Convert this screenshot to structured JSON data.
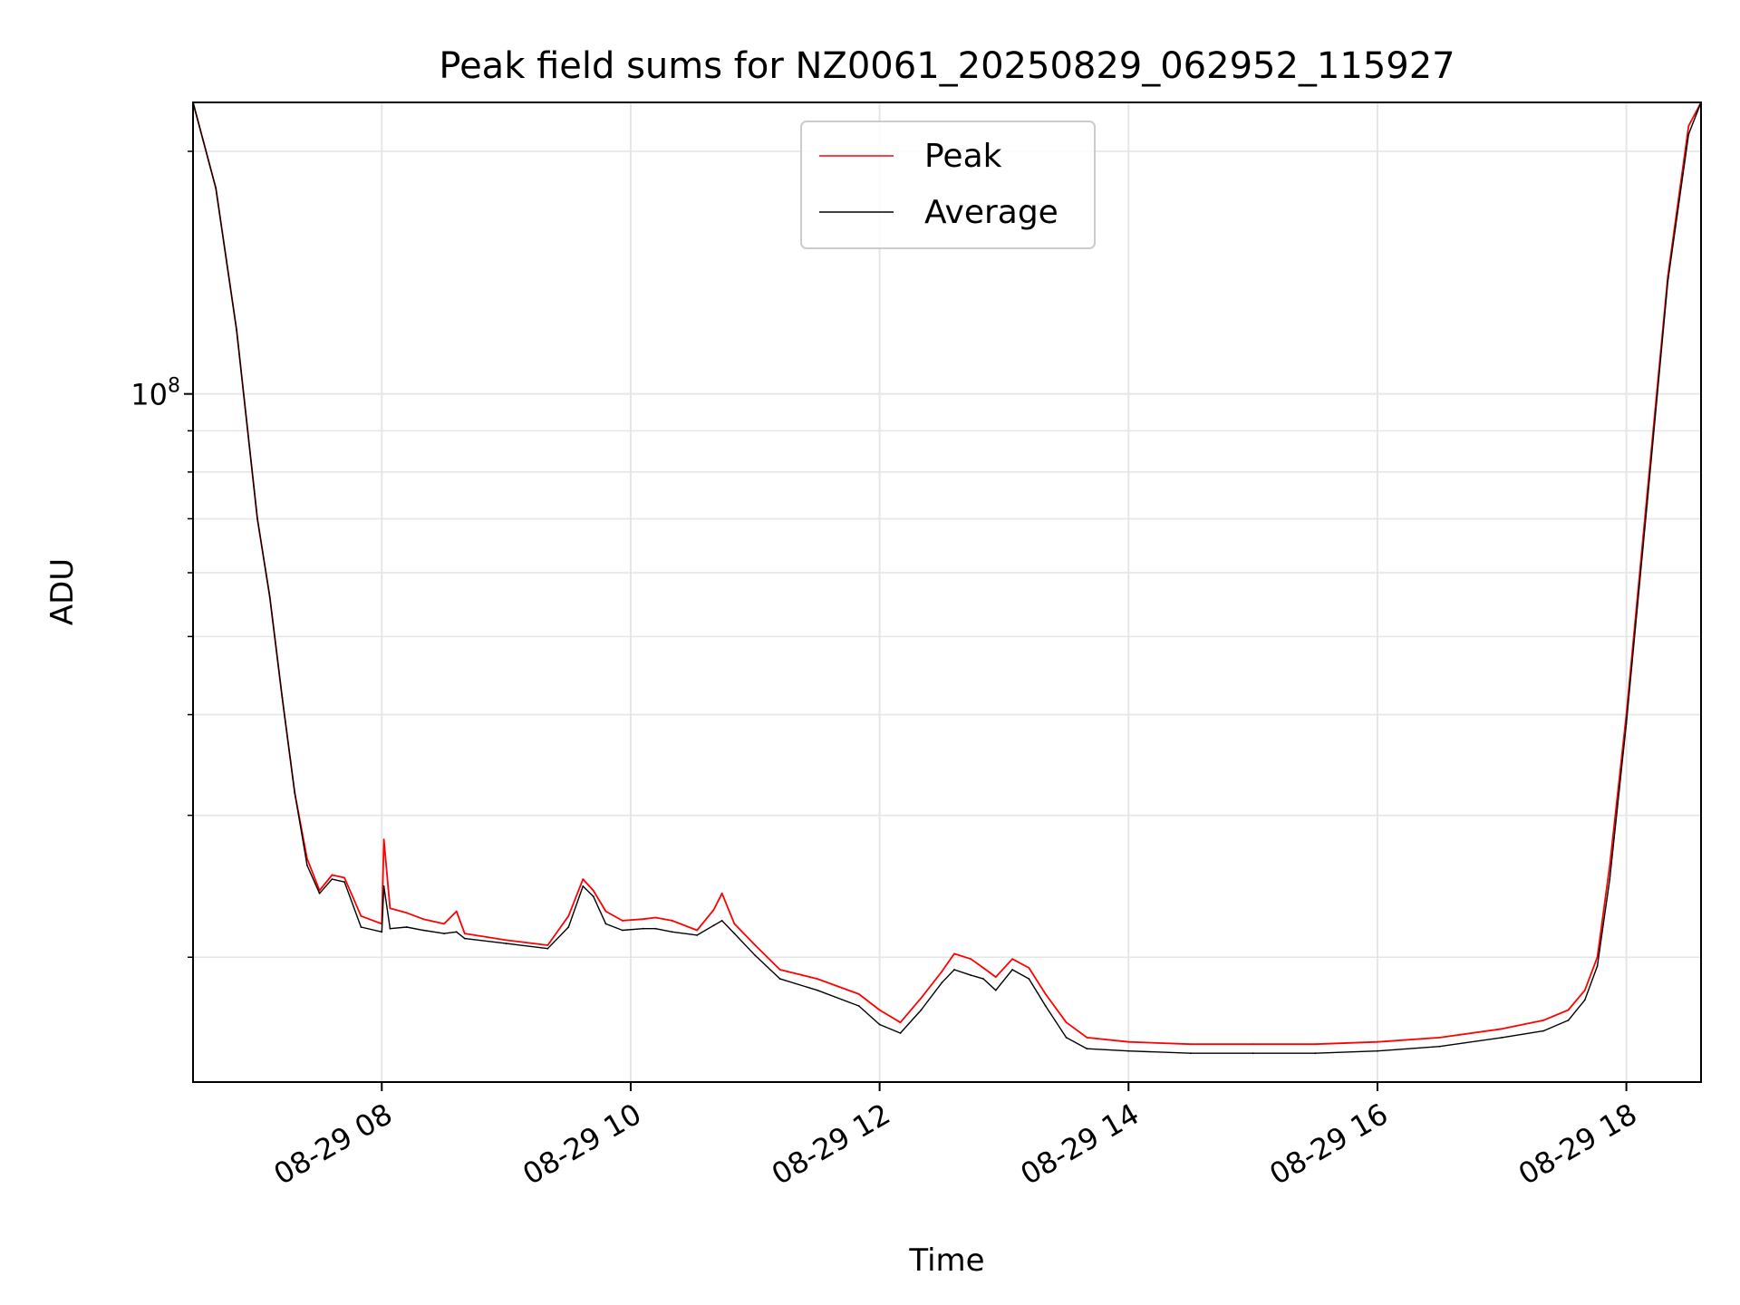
{
  "chart_data": {
    "type": "line",
    "title": "Peak field sums for NZ0061_20250829_062952_115927",
    "xlabel": "Time",
    "ylabel": "ADU",
    "y_scale": "log",
    "grid": true,
    "grid_minor": true,
    "legend_position": "top-center",
    "xlim": [
      "2025-08-29 06:29",
      "2025-08-29 18:36"
    ],
    "ylim": [
      14000000,
      230000000
    ],
    "x_ticks": [
      {
        "value": "2025-08-29 08:00",
        "label": "08-29 08"
      },
      {
        "value": "2025-08-29 10:00",
        "label": "08-29 10"
      },
      {
        "value": "2025-08-29 12:00",
        "label": "08-29 12"
      },
      {
        "value": "2025-08-29 14:00",
        "label": "08-29 14"
      },
      {
        "value": "2025-08-29 16:00",
        "label": "08-29 16"
      },
      {
        "value": "2025-08-29 18:00",
        "label": "08-29 18"
      }
    ],
    "y_ticks": [
      {
        "value": 100000000,
        "base": "10",
        "exponent": "8"
      }
    ],
    "series": [
      {
        "name": "Peak",
        "color": "#ff0000",
        "x": [
          "2025-08-29 06:29",
          "2025-08-29 06:40",
          "2025-08-29 06:50",
          "2025-08-29 07:00",
          "2025-08-29 07:06",
          "2025-08-29 07:12",
          "2025-08-29 07:18",
          "2025-08-29 07:24",
          "2025-08-29 07:30",
          "2025-08-29 07:36",
          "2025-08-29 07:42",
          "2025-08-29 07:50",
          "2025-08-29 08:00",
          "2025-08-29 08:01",
          "2025-08-29 08:04",
          "2025-08-29 08:12",
          "2025-08-29 08:20",
          "2025-08-29 08:30",
          "2025-08-29 08:36",
          "2025-08-29 08:40",
          "2025-08-29 09:00",
          "2025-08-29 09:20",
          "2025-08-29 09:30",
          "2025-08-29 09:37",
          "2025-08-29 09:42",
          "2025-08-29 09:48",
          "2025-08-29 09:56",
          "2025-08-29 10:06",
          "2025-08-29 10:12",
          "2025-08-29 10:20",
          "2025-08-29 10:32",
          "2025-08-29 10:40",
          "2025-08-29 10:44",
          "2025-08-29 10:50",
          "2025-08-29 11:00",
          "2025-08-29 11:12",
          "2025-08-29 11:30",
          "2025-08-29 11:50",
          "2025-08-29 12:00",
          "2025-08-29 12:10",
          "2025-08-29 12:20",
          "2025-08-29 12:30",
          "2025-08-29 12:36",
          "2025-08-29 12:44",
          "2025-08-29 12:50",
          "2025-08-29 12:56",
          "2025-08-29 13:04",
          "2025-08-29 13:12",
          "2025-08-29 13:20",
          "2025-08-29 13:30",
          "2025-08-29 13:40",
          "2025-08-29 14:00",
          "2025-08-29 14:30",
          "2025-08-29 15:00",
          "2025-08-29 15:30",
          "2025-08-29 16:00",
          "2025-08-29 16:30",
          "2025-08-29 17:00",
          "2025-08-29 17:20",
          "2025-08-29 17:32",
          "2025-08-29 17:40",
          "2025-08-29 17:46",
          "2025-08-29 17:52",
          "2025-08-29 18:00",
          "2025-08-29 18:10",
          "2025-08-29 18:20",
          "2025-08-29 18:30",
          "2025-08-29 18:36"
        ],
        "y": [
          230000000,
          180000000,
          120000000,
          70000000,
          56000000,
          42000000,
          32000000,
          26500000,
          24200000,
          25300000,
          25100000,
          22500000,
          22000000,
          28000000,
          23000000,
          22700000,
          22300000,
          22000000,
          22800000,
          21400000,
          21000000,
          20700000,
          22500000,
          25000000,
          24200000,
          22800000,
          22200000,
          22300000,
          22400000,
          22200000,
          21600000,
          22900000,
          24000000,
          22000000,
          20700000,
          19300000,
          18800000,
          18000000,
          17200000,
          16600000,
          17800000,
          19200000,
          20200000,
          19900000,
          19400000,
          18900000,
          19900000,
          19400000,
          18000000,
          16600000,
          15900000,
          15700000,
          15600000,
          15600000,
          15600000,
          15700000,
          15900000,
          16300000,
          16700000,
          17200000,
          18200000,
          20000000,
          26000000,
          40000000,
          75000000,
          140000000,
          215000000,
          230000000
        ]
      },
      {
        "name": "Average",
        "color": "#000000",
        "x": [
          "2025-08-29 06:29",
          "2025-08-29 06:40",
          "2025-08-29 06:50",
          "2025-08-29 07:00",
          "2025-08-29 07:06",
          "2025-08-29 07:12",
          "2025-08-29 07:18",
          "2025-08-29 07:24",
          "2025-08-29 07:30",
          "2025-08-29 07:36",
          "2025-08-29 07:42",
          "2025-08-29 07:50",
          "2025-08-29 08:00",
          "2025-08-29 08:01",
          "2025-08-29 08:04",
          "2025-08-29 08:12",
          "2025-08-29 08:20",
          "2025-08-29 08:30",
          "2025-08-29 08:36",
          "2025-08-29 08:40",
          "2025-08-29 09:00",
          "2025-08-29 09:20",
          "2025-08-29 09:30",
          "2025-08-29 09:37",
          "2025-08-29 09:42",
          "2025-08-29 09:48",
          "2025-08-29 09:56",
          "2025-08-29 10:06",
          "2025-08-29 10:12",
          "2025-08-29 10:20",
          "2025-08-29 10:32",
          "2025-08-29 10:40",
          "2025-08-29 10:44",
          "2025-08-29 10:50",
          "2025-08-29 11:00",
          "2025-08-29 11:12",
          "2025-08-29 11:30",
          "2025-08-29 11:50",
          "2025-08-29 12:00",
          "2025-08-29 12:10",
          "2025-08-29 12:20",
          "2025-08-29 12:30",
          "2025-08-29 12:36",
          "2025-08-29 12:44",
          "2025-08-29 12:50",
          "2025-08-29 12:56",
          "2025-08-29 13:04",
          "2025-08-29 13:12",
          "2025-08-29 13:20",
          "2025-08-29 13:30",
          "2025-08-29 13:40",
          "2025-08-29 14:00",
          "2025-08-29 14:30",
          "2025-08-29 15:00",
          "2025-08-29 15:30",
          "2025-08-29 16:00",
          "2025-08-29 16:30",
          "2025-08-29 17:00",
          "2025-08-29 17:20",
          "2025-08-29 17:32",
          "2025-08-29 17:40",
          "2025-08-29 17:46",
          "2025-08-29 17:52",
          "2025-08-29 18:00",
          "2025-08-29 18:10",
          "2025-08-29 18:20",
          "2025-08-29 18:30",
          "2025-08-29 18:36"
        ],
        "y": [
          230000000,
          180000000,
          120000000,
          70000000,
          56000000,
          42000000,
          32000000,
          26000000,
          24000000,
          25000000,
          24800000,
          21800000,
          21500000,
          24500000,
          21700000,
          21800000,
          21600000,
          21400000,
          21500000,
          21100000,
          20800000,
          20500000,
          21800000,
          24500000,
          23800000,
          22000000,
          21600000,
          21700000,
          21700000,
          21500000,
          21300000,
          21900000,
          22200000,
          21400000,
          20100000,
          18800000,
          18200000,
          17400000,
          16500000,
          16100000,
          17200000,
          18600000,
          19300000,
          19000000,
          18800000,
          18200000,
          19300000,
          18800000,
          17400000,
          15900000,
          15400000,
          15300000,
          15200000,
          15200000,
          15200000,
          15300000,
          15500000,
          15900000,
          16200000,
          16700000,
          17700000,
          19500000,
          25000000,
          39000000,
          73000000,
          138000000,
          210000000,
          230000000
        ]
      }
    ]
  }
}
